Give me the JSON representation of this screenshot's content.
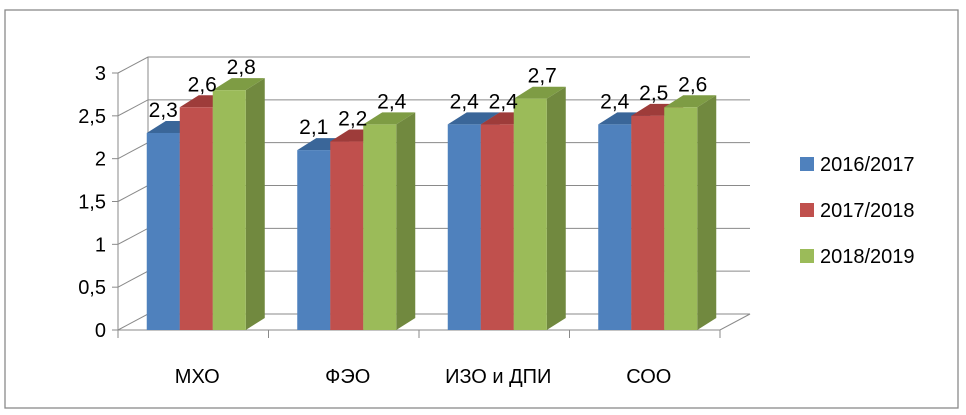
{
  "chart_data": {
    "type": "bar",
    "categories": [
      "МХО",
      "ФЭО",
      "ИЗО и ДПИ",
      "СОО"
    ],
    "series": [
      {
        "name": "2016/2017",
        "values": [
          2.3,
          2.1,
          2.4,
          2.4
        ],
        "labels": [
          "2,3",
          "2,1",
          "2,4",
          "2,4"
        ]
      },
      {
        "name": "2017/2018",
        "values": [
          2.6,
          2.2,
          2.4,
          2.5
        ],
        "labels": [
          "2,6",
          "2,2",
          "2,4",
          "2,5"
        ]
      },
      {
        "name": "2018/2019",
        "values": [
          2.8,
          2.4,
          2.7,
          2.6
        ],
        "labels": [
          "2,8",
          "2,4",
          "2,7",
          "2,6"
        ]
      }
    ],
    "yticks": [
      "0",
      "0,5",
      "1",
      "1,5",
      "2",
      "2,5",
      "3"
    ],
    "ylim": [
      0,
      3
    ],
    "grid": true,
    "legend_position": "right",
    "colors": {
      "2016/2017": {
        "front": "#4F81BD",
        "side": "#385D8A",
        "top": "#3A6699"
      },
      "2017/2018": {
        "front": "#C0504D",
        "side": "#8C3836",
        "top": "#9E3C3A"
      },
      "2018/2019": {
        "front": "#9BBB59",
        "side": "#71893F",
        "top": "#7E9C44"
      }
    },
    "title": "",
    "xlabel": "",
    "ylabel": ""
  }
}
